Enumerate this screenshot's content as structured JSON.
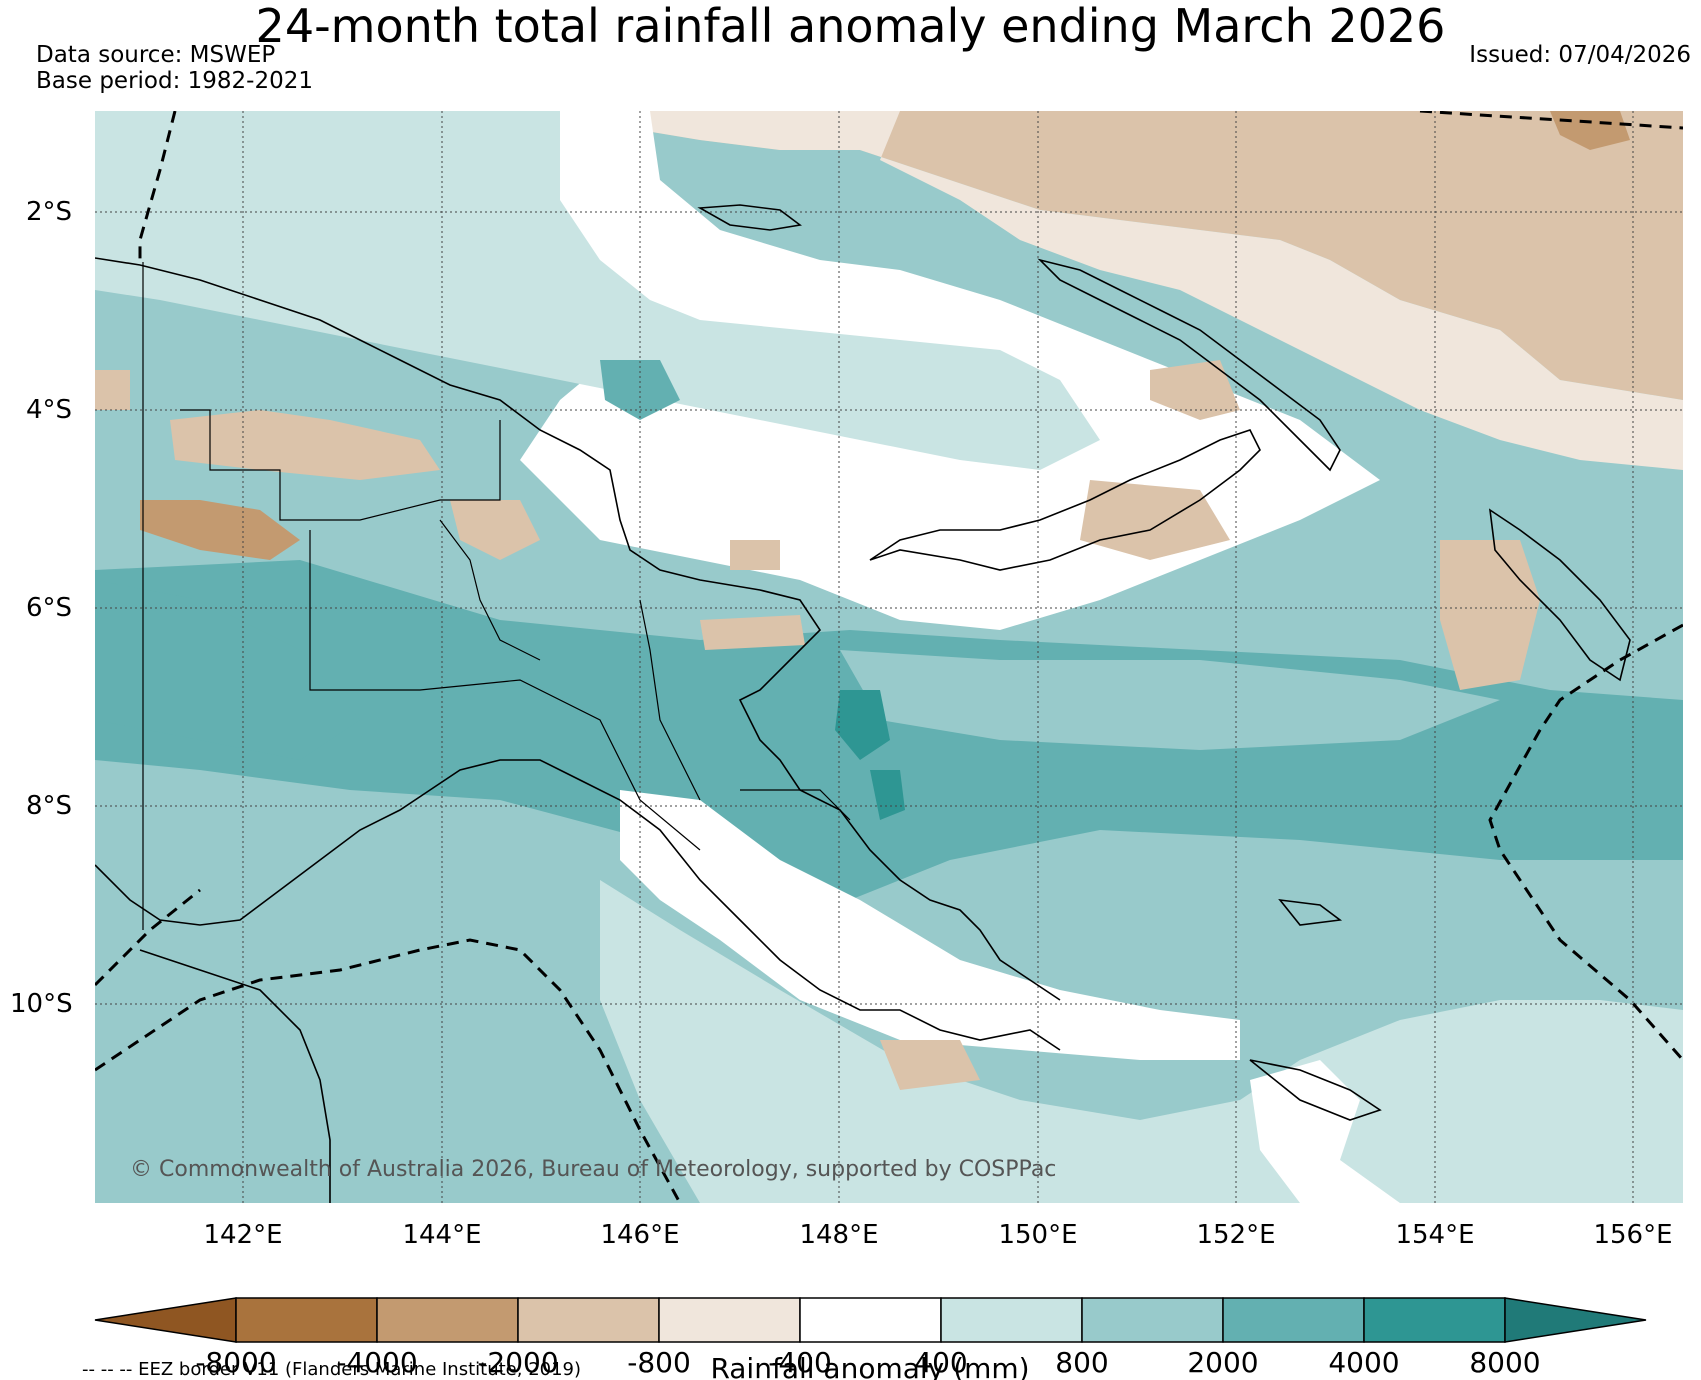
{
  "title": "24-month total rainfall anomaly ending March 2026",
  "data_source": "Data source: MSWEP",
  "base_period": "Base period: 1982-2021",
  "issued": "Issued: 07/04/2026",
  "copyright": "© Commonwealth of Australia 2026, Bureau of Meteorology, supported by COSPPac",
  "map": {
    "lat_labels": [
      "2°S",
      "4°S",
      "6°S",
      "8°S",
      "10°S"
    ],
    "lon_labels": [
      "142°E",
      "144°E",
      "146°E",
      "148°E",
      "150°E",
      "152°E",
      "154°E",
      "156°E"
    ]
  },
  "colorbar": {
    "title": "Rainfall anomaly (mm)",
    "ticks": [
      "-8000",
      "-4000",
      "-2000",
      "-800",
      "-400",
      "400",
      "800",
      "2000",
      "4000",
      "8000"
    ],
    "colors": [
      "#8f5622",
      "#a9733d",
      "#c39a70",
      "#dbc3aa",
      "#f0e6dc",
      "#ffffff",
      "#c9e4e3",
      "#98cacb",
      "#63b0b1",
      "#2e9693",
      "#207a78"
    ]
  },
  "eez_note": "-- -- -- EEZ border V11 (Flanders Marine Institute, 2019)"
}
